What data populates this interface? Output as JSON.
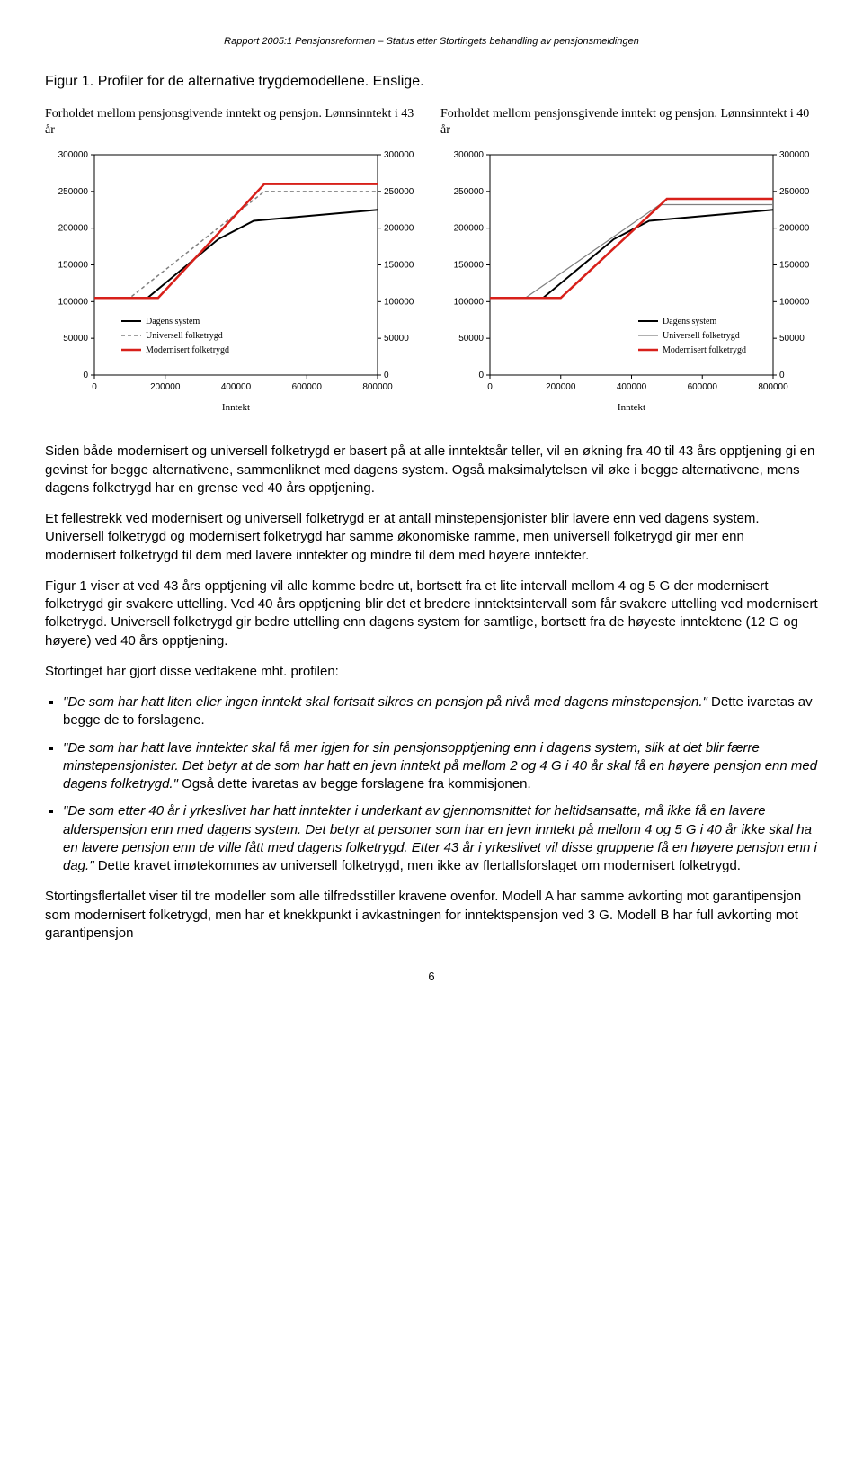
{
  "header": "Rapport 2005:1 Pensjonsreformen – Status etter Stortingets behandling av pensjonsmeldingen",
  "figure_caption": "Figur 1. Profiler for de alternative trygdemodellene. Enslige.",
  "chart_left": {
    "type": "line",
    "title": "Forholdet mellom pensjonsgivende inntekt og pensjon. Lønnsinntekt i 43 år",
    "xlabel": "Inntekt",
    "xlim": [
      0,
      800000
    ],
    "xticks": [
      0,
      200000,
      400000,
      600000,
      800000
    ],
    "ylim": [
      0,
      300000
    ],
    "yticks": [
      0,
      50000,
      100000,
      150000,
      200000,
      250000,
      300000
    ],
    "right_ylim": [
      0,
      300000
    ],
    "right_yticks": [
      0,
      50000,
      100000,
      150000,
      200000,
      250000,
      300000
    ],
    "grid": false,
    "background_color": "#ffffff",
    "legend_pos": "inside-lower",
    "series": [
      {
        "name": "Dagens system",
        "color": "#000000",
        "width": 2,
        "dash": "none",
        "points": [
          [
            0,
            105000
          ],
          [
            150000,
            105000
          ],
          [
            350000,
            185000
          ],
          [
            450000,
            210000
          ],
          [
            800000,
            225000
          ]
        ]
      },
      {
        "name": "Universell folketrygd",
        "color": "#808080",
        "width": 1.5,
        "dash": "4,3",
        "points": [
          [
            0,
            105000
          ],
          [
            100000,
            105000
          ],
          [
            480000,
            250000
          ],
          [
            800000,
            250000
          ]
        ]
      },
      {
        "name": "Modernisert folketrygd",
        "color": "#d8201a",
        "width": 2.5,
        "dash": "none",
        "points": [
          [
            0,
            105000
          ],
          [
            180000,
            105000
          ],
          [
            480000,
            260000
          ],
          [
            800000,
            260000
          ]
        ]
      }
    ]
  },
  "chart_right": {
    "type": "line",
    "title": "Forholdet mellom pensjonsgivende inntekt og pensjon. Lønnsinntekt i 40 år",
    "xlabel": "Inntekt",
    "xlim": [
      0,
      800000
    ],
    "xticks": [
      0,
      200000,
      400000,
      600000,
      800000
    ],
    "ylim": [
      0,
      300000
    ],
    "yticks": [
      0,
      50000,
      100000,
      150000,
      200000,
      250000,
      300000
    ],
    "right_ylim": [
      0,
      300000
    ],
    "right_yticks": [
      0,
      50000,
      100000,
      150000,
      200000,
      250000,
      300000
    ],
    "grid": false,
    "background_color": "#ffffff",
    "legend_pos": "inside-lower-right",
    "series": [
      {
        "name": "Dagens system",
        "color": "#000000",
        "width": 2,
        "dash": "none",
        "points": [
          [
            0,
            105000
          ],
          [
            150000,
            105000
          ],
          [
            350000,
            185000
          ],
          [
            450000,
            210000
          ],
          [
            800000,
            225000
          ]
        ]
      },
      {
        "name": "Universell folketrygd",
        "color": "#808080",
        "width": 1.2,
        "dash": "none",
        "points": [
          [
            0,
            105000
          ],
          [
            100000,
            105000
          ],
          [
            480000,
            232000
          ],
          [
            800000,
            232000
          ]
        ]
      },
      {
        "name": "Modernisert folketrygd",
        "color": "#d8201a",
        "width": 2.5,
        "dash": "none",
        "points": [
          [
            0,
            105000
          ],
          [
            200000,
            105000
          ],
          [
            500000,
            240000
          ],
          [
            800000,
            240000
          ]
        ]
      }
    ]
  },
  "paragraphs": {
    "p1": "Siden både modernisert og universell folketrygd er basert på at alle inntektsår teller, vil en økning fra 40 til 43 års opptjening gi en gevinst for begge alternativene, sammenliknet med dagens system. Også maksimalytelsen vil øke i begge alternativene, mens dagens folketrygd har en grense ved 40 års opptjening.",
    "p2": "Et fellestrekk ved modernisert og universell folketrygd er at antall minstepensjonister blir lavere enn ved dagens system. Universell folketrygd og modernisert folketrygd har samme økonomiske ramme, men universell folketrygd gir mer enn modernisert folketrygd til dem med lavere inntekter og mindre til dem med høyere inntekter.",
    "p3": "Figur 1 viser at ved 43 års opptjening vil alle komme bedre ut, bortsett fra et lite intervall mellom 4 og 5 G der modernisert folketrygd gir svakere uttelling. Ved 40 års opptjening blir det et bredere inntektsintervall som får svakere uttelling ved modernisert folketrygd. Universell folketrygd gir bedre uttelling enn dagens system for samtlige, bortsett fra de høyeste inntektene (12 G og høyere) ved 40 års opptjening.",
    "p4": "Stortinget har gjort disse vedtakene mht. profilen:"
  },
  "bullets": {
    "b1_italic": "\"De som har hatt liten eller ingen inntekt skal fortsatt sikres en pensjon på nivå med dagens minstepensjon.\"",
    "b1_rest": " Dette ivaretas av begge de to forslagene.",
    "b2_italic": "\"De som har hatt lave inntekter skal få mer igjen for sin pensjonsopptjening enn i dagens system, slik at det blir færre minstepensjonister. Det betyr at de som har hatt en jevn inntekt på mellom 2 og 4 G i 40 år skal få en høyere pensjon enn med dagens folketrygd.\"",
    "b2_rest": " Også dette ivaretas av begge forslagene fra kommisjonen.",
    "b3_italic": "\"De som etter 40 år i yrkeslivet har hatt inntekter i underkant av gjennomsnittet for heltidsansatte, må ikke få en lavere alderspensjon enn med dagens system. Det betyr at personer som har en jevn inntekt på mellom 4 og 5 G i 40 år ikke skal ha en lavere pensjon enn de ville fått med dagens folketrygd. Etter 43 år i yrkeslivet vil disse gruppene få en høyere pensjon enn i dag.\"",
    "b3_rest": " Dette kravet imøtekommes av universell folketrygd, men ikke av flertallsforslaget om modernisert folketrygd."
  },
  "p_last": "Stortingsflertallet viser til tre modeller som alle tilfredsstiller kravene ovenfor. Modell A har samme avkorting mot garantipensjon som modernisert folketrygd, men har et knekkpunkt i avkastningen for inntektspensjon ved 3 G. Modell B har full avkorting mot garantipensjon",
  "page_number": "6"
}
